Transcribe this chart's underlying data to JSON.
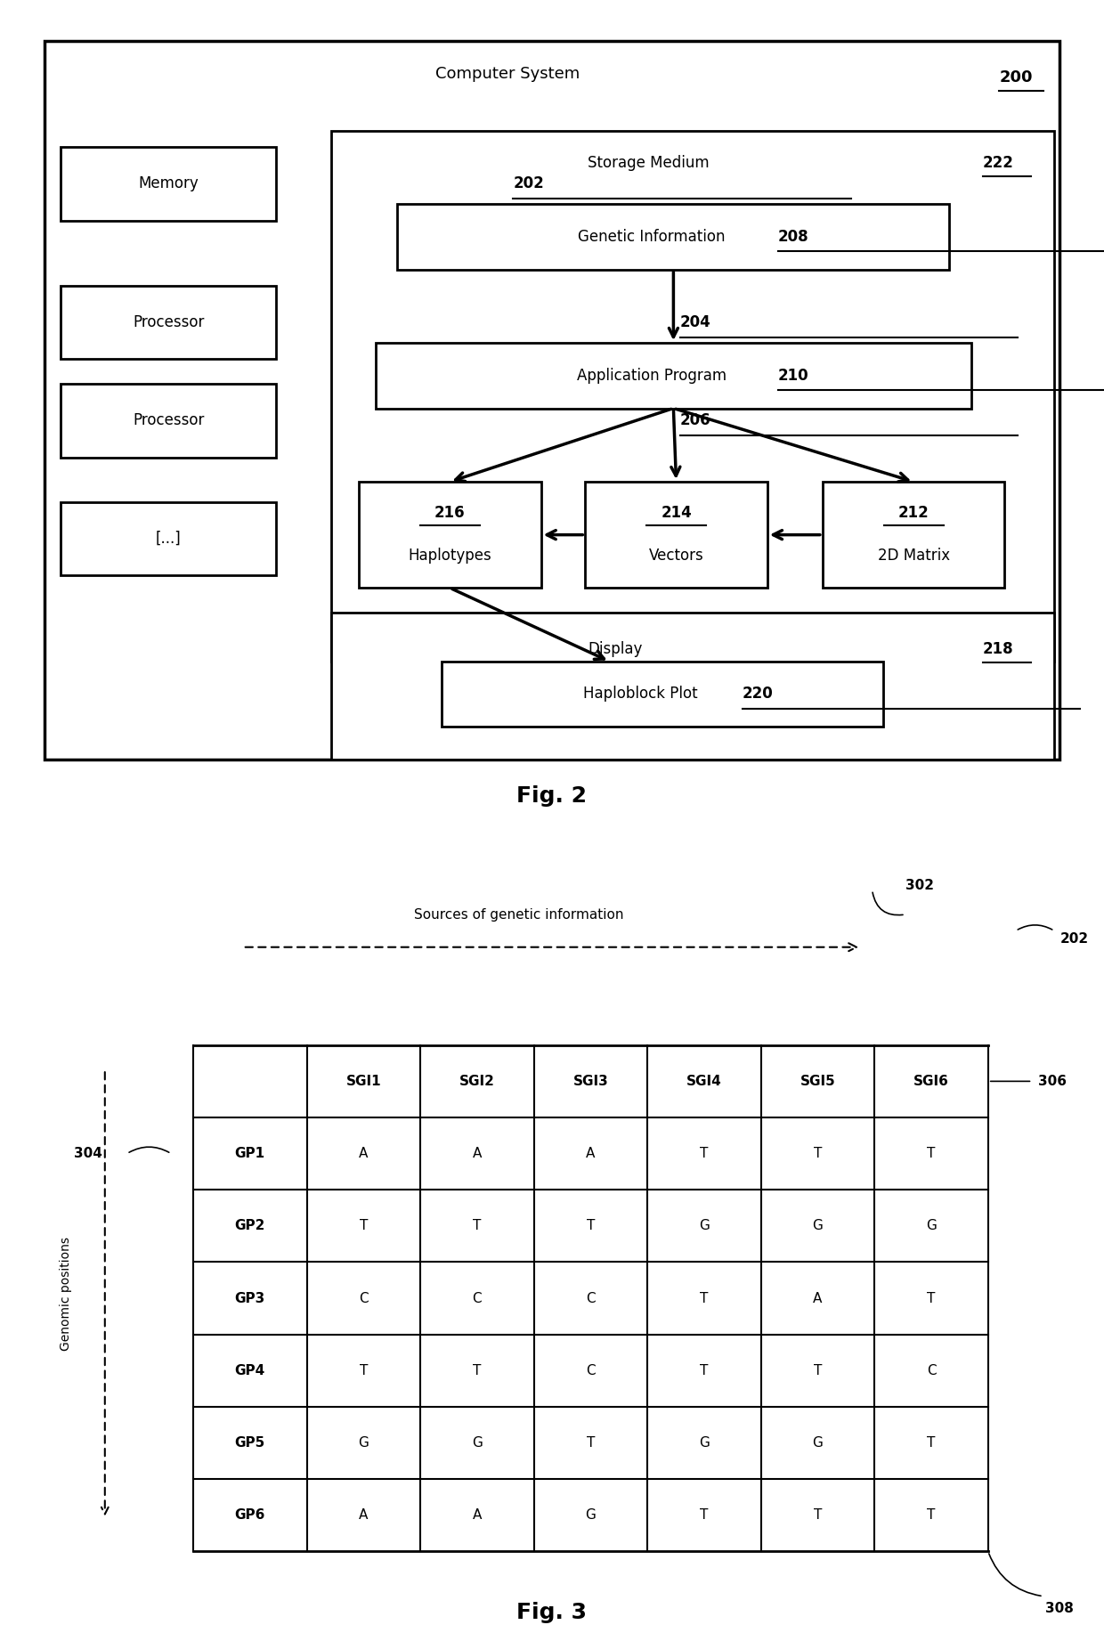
{
  "fig2": {
    "title": "Computer System",
    "title_ref": "200",
    "left_boxes": [
      {
        "label": "Memory",
        "ref": "202"
      },
      {
        "label": "Processor",
        "ref": "204"
      },
      {
        "label": "Processor",
        "ref": "206"
      },
      {
        "label": "[...]",
        "ref": ""
      }
    ],
    "storage_label": "Storage Medium",
    "storage_ref": "222",
    "display_label": "Display",
    "display_ref": "218",
    "gi_label": "Genetic Information",
    "gi_ref": "208",
    "ap_label": "Application Program",
    "ap_ref": "210",
    "hap_label": "Haplotypes",
    "hap_ref": "216",
    "vec_label": "Vectors",
    "vec_ref": "214",
    "mat_label": "2D Matrix",
    "mat_ref": "212",
    "happlot_label": "Haploblock Plot",
    "happlot_ref": "220",
    "fig_label": "Fig. 2"
  },
  "fig3": {
    "arrow_label": "Sources of genetic information",
    "ref_302": "302",
    "ref_202": "202",
    "ref_304": "304",
    "ref_306": "306",
    "ref_308": "308",
    "genomic_label": "Genomic positions",
    "columns": [
      "",
      "SGI1",
      "SGI2",
      "SGI3",
      "SGI4",
      "SGI5",
      "SGI6"
    ],
    "rows": [
      [
        "GP1",
        "A",
        "A",
        "A",
        "T",
        "T",
        "T"
      ],
      [
        "GP2",
        "T",
        "T",
        "T",
        "G",
        "G",
        "G"
      ],
      [
        "GP3",
        "C",
        "C",
        "C",
        "T",
        "A",
        "T"
      ],
      [
        "GP4",
        "T",
        "T",
        "C",
        "T",
        "T",
        "C"
      ],
      [
        "GP5",
        "G",
        "G",
        "T",
        "G",
        "G",
        "T"
      ],
      [
        "GP6",
        "A",
        "A",
        "G",
        "T",
        "T",
        "T"
      ]
    ],
    "fig_label": "Fig. 3"
  }
}
